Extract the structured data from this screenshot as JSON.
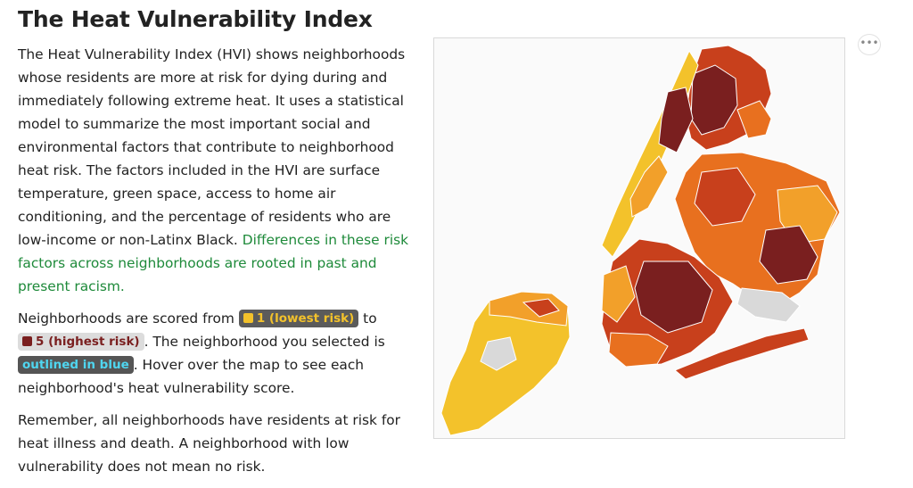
{
  "title": "The Heat Vulnerability Index",
  "paragraph1": {
    "text": "The Heat Vulnerability Index (HVI) shows neighborhoods whose residents are more at risk for dying during and immediately following extreme heat. It uses a statistical model to summarize the most important social and environmental factors that contribute to neighborhood heat risk. The factors included in the HVI are surface temperature, green space, access to home air conditioning, and the percentage of residents who are low-income or non-Latinx Black. ",
    "highlight": "Differences in these risk factors across neighborhoods are rooted in past and present racism."
  },
  "paragraph2": {
    "part1": "Neighborhoods are scored from ",
    "low_label": "1 (lowest risk)",
    "part2": " to ",
    "high_label": "5 (highest risk)",
    "part3": ". The neighborhood you selected is ",
    "selected_label": "outlined in blue",
    "part4": ". Hover over the map to see each neighborhood's heat vulnerability score."
  },
  "paragraph3": "Remember, all neighborhoods have residents at risk for heat illness and death. A neighborhood with low vulnerability does not mean no risk.",
  "more_button": "•••",
  "colors": {
    "score_1": "#f3c22b",
    "score_2": "#f2a02a",
    "score_3": "#e8701f",
    "score_4": "#c8401c",
    "score_5": "#7a1f1f",
    "no_data": "#d9d9d9",
    "selected_outline": "#4fd6f0",
    "highlight_text": "#1e8a3a"
  }
}
